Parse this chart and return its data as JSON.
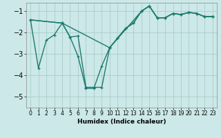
{
  "background_color": "#cce8e8",
  "grid_color": "#aacccc",
  "line_color": "#1a7a6e",
  "xlabel": "Humidex (Indice chaleur)",
  "xlim": [
    -0.5,
    23.5
  ],
  "ylim": [
    -5.5,
    -0.6
  ],
  "yticks": [
    -5,
    -4,
    -3,
    -2,
    -1
  ],
  "xticks": [
    0,
    1,
    2,
    3,
    4,
    5,
    6,
    7,
    8,
    9,
    10,
    11,
    12,
    13,
    14,
    15,
    16,
    17,
    18,
    19,
    20,
    21,
    22,
    23
  ],
  "line1_x": [
    0,
    1,
    2,
    3,
    4,
    5,
    6,
    7,
    8,
    9,
    10,
    11,
    12,
    13,
    14,
    15,
    16,
    17,
    18,
    19,
    20,
    21,
    22,
    23
  ],
  "line1_y": [
    -1.4,
    -3.65,
    -2.35,
    -2.1,
    -1.55,
    -2.2,
    -3.1,
    -4.6,
    -4.6,
    -3.55,
    -2.7,
    -2.25,
    -1.8,
    -1.55,
    -1.0,
    -0.75,
    -1.3,
    -1.3,
    -1.1,
    -1.15,
    -1.05,
    -1.1,
    -1.25,
    -1.25
  ],
  "line2_x": [
    0,
    4,
    5,
    6,
    7,
    8,
    9,
    10,
    11,
    12,
    13,
    14,
    15,
    16,
    17,
    18,
    19,
    20,
    21,
    22,
    23
  ],
  "line2_y": [
    -1.4,
    -1.55,
    -2.2,
    -2.15,
    -4.55,
    -4.55,
    -4.55,
    -2.7,
    -2.25,
    -1.8,
    -1.55,
    -1.0,
    -0.75,
    -1.3,
    -1.3,
    -1.1,
    -1.15,
    -1.05,
    -1.1,
    -1.25,
    -1.25
  ],
  "line3_x": [
    0,
    4,
    10,
    14,
    15,
    16,
    17,
    18,
    19,
    20,
    21,
    22,
    23
  ],
  "line3_y": [
    -1.4,
    -1.55,
    -2.7,
    -1.0,
    -0.75,
    -1.3,
    -1.3,
    -1.1,
    -1.15,
    -1.05,
    -1.1,
    -1.25,
    -1.25
  ],
  "marker": "+",
  "marker_size": 3.5,
  "line_width": 1.0
}
